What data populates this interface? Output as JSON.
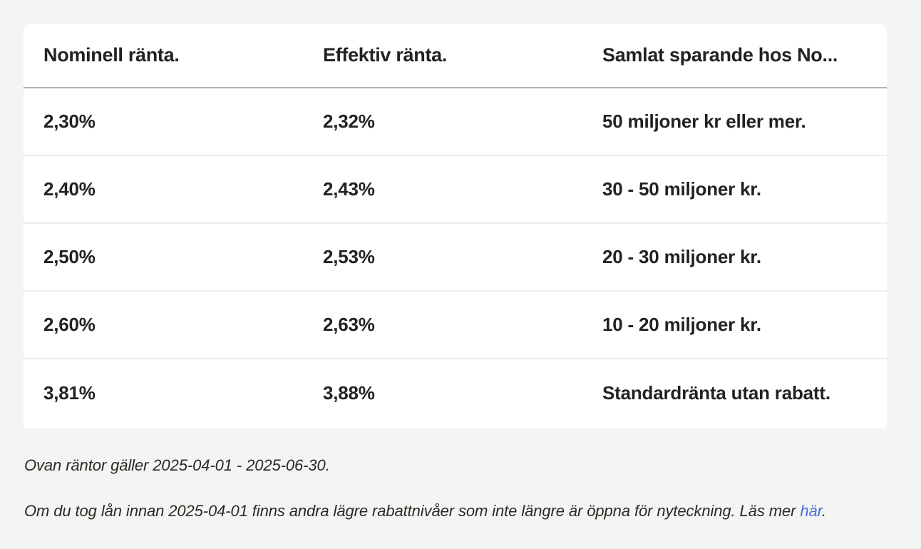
{
  "colors": {
    "page_background": "#f4f4f2",
    "card_background": "#ffffff",
    "text": "#24221f",
    "header_divider": "#b4b3b0",
    "row_divider": "#eeedeb",
    "link": "#4a6ce0"
  },
  "table": {
    "columns": [
      {
        "label": "Nominell ränta."
      },
      {
        "label": "Effektiv ränta."
      },
      {
        "label": "Samlat sparande hos No..."
      }
    ],
    "rows": [
      [
        "2,30%",
        "2,32%",
        "50 miljoner kr eller mer."
      ],
      [
        "2,40%",
        "2,43%",
        "30 - 50 miljoner kr."
      ],
      [
        "2,50%",
        "2,53%",
        "20 - 30 miljoner kr."
      ],
      [
        "2,60%",
        "2,63%",
        "10 - 20 miljoner kr."
      ],
      [
        "3,81%",
        "3,88%",
        "Standardränta utan rabatt."
      ]
    ]
  },
  "footnotes": {
    "validity_note": "Ovan räntor gäller 2025-04-01 - 2025-06-30.",
    "legacy_note_prefix": "Om du tog lån innan 2025-04-01 finns andra lägre rabattnivåer som inte längre är öppna för nyteckning. Läs mer ",
    "link_text": "här",
    "legacy_note_suffix": "."
  }
}
